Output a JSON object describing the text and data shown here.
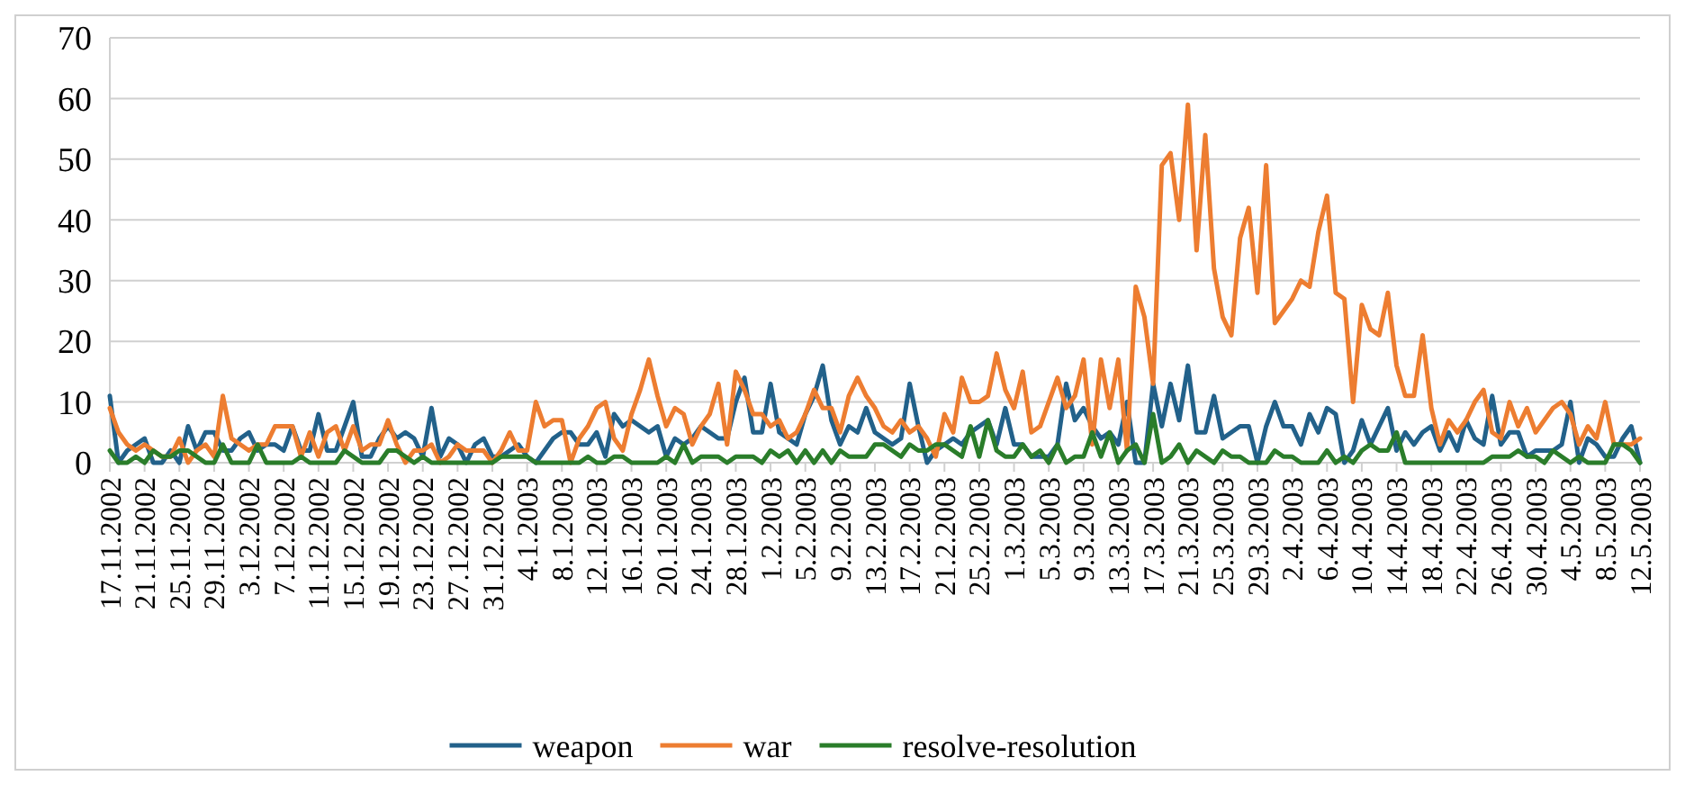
{
  "chart_data": {
    "type": "line",
    "categories": [
      "17.11.2002",
      null,
      null,
      null,
      "21.11.2002",
      null,
      null,
      null,
      "25.11.2002",
      null,
      null,
      null,
      "29.11.2002",
      null,
      null,
      null,
      "3.12.2002",
      null,
      null,
      null,
      "7.12.2002",
      null,
      null,
      null,
      "11.12.2002",
      null,
      null,
      null,
      "15.12.2002",
      null,
      null,
      null,
      "19.12.2002",
      null,
      null,
      null,
      "23.12.2002",
      null,
      null,
      null,
      "27.12.2002",
      null,
      null,
      null,
      "31.12.2002",
      null,
      null,
      null,
      "4.1.2003",
      null,
      null,
      null,
      "8.1.2003",
      null,
      null,
      null,
      "12.1.2003",
      null,
      null,
      null,
      "16.1.2003",
      null,
      null,
      null,
      "20.1.2003",
      null,
      null,
      null,
      "24.1.2003",
      null,
      null,
      null,
      "28.1.2003",
      null,
      null,
      null,
      "1.2.2003",
      null,
      null,
      null,
      "5.2.2003",
      null,
      null,
      null,
      "9.2.2003",
      null,
      null,
      null,
      "13.2.2003",
      null,
      null,
      null,
      "17.2.2003",
      null,
      null,
      null,
      "21.2.2003",
      null,
      null,
      null,
      "25.2.2003",
      null,
      null,
      null,
      "1.3.2003",
      null,
      null,
      null,
      "5.3.2003",
      null,
      null,
      null,
      "9.3.2003",
      null,
      null,
      null,
      "13.3.2003",
      null,
      null,
      null,
      "17.3.2003",
      null,
      null,
      null,
      "21.3.2003",
      null,
      null,
      null,
      "25.3.2003",
      null,
      null,
      null,
      "29.3.2003",
      null,
      null,
      null,
      "2.4.2003",
      null,
      null,
      null,
      "6.4.2003",
      null,
      null,
      null,
      "10.4.2003",
      null,
      null,
      null,
      "14.4.2003",
      null,
      null,
      null,
      "18.4.2003",
      null,
      null,
      null,
      "22.4.2003",
      null,
      null,
      null,
      "26.4.2003",
      null,
      null,
      null,
      "30.4.2003",
      null,
      null,
      null,
      "4.5.2003",
      null,
      null,
      null,
      "8.5.2003",
      null,
      null,
      null,
      "12.5.2003"
    ],
    "series": [
      {
        "name": "weapon",
        "color": "#22618a",
        "values": [
          11,
          0,
          2,
          3,
          4,
          0,
          0,
          2,
          0,
          6,
          2,
          5,
          5,
          2,
          2,
          4,
          5,
          2,
          3,
          3,
          2,
          6,
          2,
          2,
          8,
          2,
          2,
          6,
          10,
          1,
          1,
          4,
          6,
          4,
          5,
          4,
          1,
          9,
          1,
          4,
          3,
          0,
          3,
          4,
          1,
          1,
          2,
          3,
          1,
          0,
          2,
          4,
          5,
          5,
          3,
          3,
          5,
          1,
          8,
          6,
          7,
          6,
          5,
          6,
          1,
          4,
          3,
          4,
          6,
          5,
          4,
          4,
          10,
          14,
          5,
          5,
          13,
          5,
          4,
          3,
          8,
          11,
          16,
          7,
          3,
          6,
          5,
          9,
          5,
          4,
          3,
          4,
          13,
          6,
          0,
          2,
          3,
          4,
          3,
          5,
          6,
          7,
          3,
          9,
          3,
          3,
          1,
          1,
          1,
          3,
          13,
          7,
          9,
          6,
          4,
          5,
          3,
          10,
          0,
          0,
          13,
          6,
          13,
          7,
          16,
          5,
          5,
          11,
          4,
          5,
          6,
          6,
          0,
          6,
          10,
          6,
          6,
          3,
          8,
          5,
          9,
          8,
          0,
          2,
          7,
          3,
          6,
          9,
          2,
          5,
          3,
          5,
          6,
          2,
          5,
          2,
          7,
          4,
          3,
          11,
          3,
          5,
          5,
          1,
          2,
          2,
          2,
          3,
          10,
          0,
          4,
          3,
          1,
          1,
          4,
          6,
          0
        ]
      },
      {
        "name": "war",
        "color": "#ed7d31",
        "values": [
          9,
          5,
          3,
          2,
          3,
          2,
          1,
          1,
          4,
          0,
          2,
          3,
          1,
          11,
          4,
          3,
          2,
          3,
          3,
          6,
          6,
          6,
          1,
          5,
          1,
          5,
          6,
          2,
          6,
          2,
          3,
          3,
          7,
          3,
          0,
          2,
          2,
          3,
          0,
          1,
          3,
          2,
          2,
          2,
          0,
          2,
          5,
          2,
          2,
          10,
          6,
          7,
          7,
          0,
          4,
          6,
          9,
          10,
          4,
          2,
          8,
          12,
          17,
          11,
          6,
          9,
          8,
          3,
          6,
          8,
          13,
          3,
          15,
          12,
          8,
          8,
          6,
          7,
          4,
          5,
          8,
          12,
          9,
          9,
          5,
          11,
          14,
          11,
          9,
          6,
          5,
          7,
          5,
          6,
          4,
          1,
          8,
          5,
          14,
          10,
          10,
          11,
          18,
          12,
          9,
          15,
          5,
          6,
          10,
          14,
          9,
          11,
          17,
          3,
          17,
          9,
          17,
          2,
          29,
          24,
          13,
          49,
          51,
          40,
          59,
          35,
          54,
          32,
          24,
          21,
          37,
          42,
          28,
          49,
          23,
          25,
          27,
          30,
          29,
          38,
          44,
          28,
          27,
          10,
          26,
          22,
          21,
          28,
          16,
          11,
          11,
          21,
          9,
          3,
          7,
          5,
          7,
          10,
          12,
          5,
          4,
          10,
          6,
          9,
          5,
          7,
          9,
          10,
          8,
          3,
          6,
          4,
          10,
          3,
          3,
          3,
          4
        ]
      },
      {
        "name": "resolve-resolution",
        "color": "#2a7d2a",
        "values": [
          2,
          0,
          0,
          1,
          0,
          2,
          1,
          1,
          2,
          2,
          1,
          0,
          0,
          3,
          0,
          0,
          0,
          3,
          0,
          0,
          0,
          0,
          1,
          0,
          0,
          0,
          0,
          2,
          1,
          0,
          0,
          0,
          2,
          2,
          1,
          0,
          1,
          0,
          0,
          0,
          0,
          0,
          0,
          0,
          0,
          1,
          1,
          1,
          1,
          0,
          0,
          0,
          0,
          0,
          0,
          1,
          0,
          0,
          1,
          1,
          0,
          0,
          0,
          0,
          1,
          0,
          3,
          0,
          1,
          1,
          1,
          0,
          1,
          1,
          1,
          0,
          2,
          1,
          2,
          0,
          2,
          0,
          2,
          0,
          2,
          1,
          1,
          1,
          3,
          3,
          2,
          1,
          3,
          2,
          2,
          3,
          3,
          2,
          1,
          6,
          1,
          7,
          2,
          1,
          1,
          3,
          1,
          2,
          0,
          3,
          0,
          1,
          1,
          5,
          1,
          5,
          0,
          2,
          3,
          0,
          8,
          0,
          1,
          3,
          0,
          2,
          1,
          0,
          2,
          1,
          1,
          0,
          0,
          0,
          2,
          1,
          1,
          0,
          0,
          0,
          2,
          0,
          1,
          0,
          2,
          3,
          2,
          2,
          5,
          0,
          0,
          0,
          0,
          0,
          0,
          0,
          0,
          0,
          0,
          1,
          1,
          1,
          2,
          1,
          1,
          0,
          2,
          1,
          0,
          1,
          0,
          0,
          0,
          3,
          3,
          2,
          0
        ]
      }
    ],
    "ylim": [
      0,
      70
    ],
    "yticks": [
      0,
      10,
      20,
      30,
      40,
      50,
      60,
      70
    ],
    "grid": "y",
    "legend": "bottom",
    "line_style": "solid",
    "marker": "none"
  }
}
